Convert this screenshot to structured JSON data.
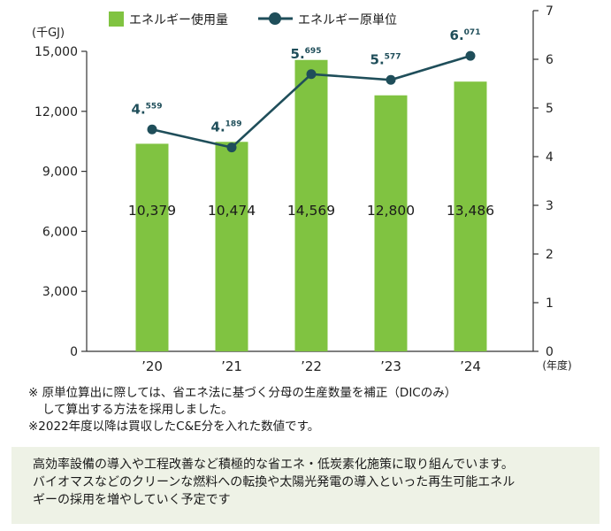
{
  "chart_data": {
    "type": "bar+line",
    "categories": [
      "’20",
      "’21",
      "’22",
      "’23",
      "’24"
    ],
    "x_unit_label": "(年度)",
    "left_axis": {
      "unit_label": "(千GJ)",
      "ylim": [
        0,
        15000
      ],
      "ticks": [
        "0",
        "3,000",
        "6,000",
        "9,000",
        "12,000",
        "15,000"
      ]
    },
    "right_axis": {
      "ylim": [
        0,
        7
      ],
      "ticks": [
        "0",
        "1",
        "2",
        "3",
        "4",
        "5",
        "6",
        "7"
      ]
    },
    "series": [
      {
        "name": "エネルギー使用量",
        "type": "bar",
        "axis": "left",
        "values": [
          10379,
          10474,
          14569,
          12800,
          13486
        ],
        "labels": [
          "10,379",
          "10,474",
          "14,569",
          "12,800",
          "13,486"
        ]
      },
      {
        "name": "エネルギー原単位",
        "type": "line",
        "axis": "right",
        "values": [
          4.559,
          4.189,
          5.695,
          5.577,
          6.071
        ],
        "label_int": [
          "4.",
          "4.",
          "5.",
          "5.",
          "6."
        ],
        "label_dec": [
          "559",
          "189",
          "695",
          "577",
          "071"
        ]
      }
    ],
    "colors": {
      "bar": "#80c341",
      "line": "#1f4e5a",
      "axis": "#333333"
    },
    "legend_position": "top"
  },
  "notes": {
    "note1_line1": "※ 原単位算出に際しては、省エネ法に基づく分母の生産数量を補正（DICのみ）",
    "note1_line2": "して算出する方法を採用しました。",
    "note2": "※2022年度以降は買収したC&E分を入れた数値です。"
  },
  "summary": {
    "line1": "高効率設備の導入や工程改善など積極的な省エネ・低炭素化施策に取り組んでいます。",
    "line2": "バイオマスなどのクリーンな燃料への転換や太陽光発電の導入といった再生可能エネル",
    "line3": "ギーの採用を増やしていく予定です"
  }
}
